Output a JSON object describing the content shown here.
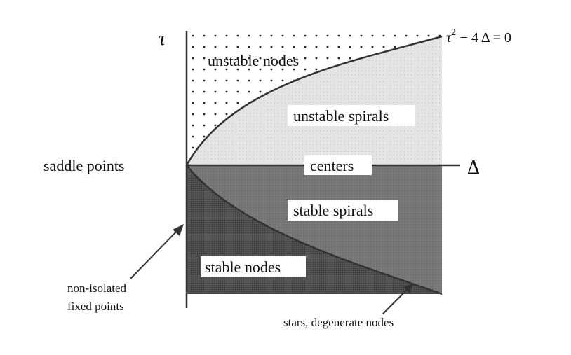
{
  "diagram": {
    "axes": {
      "vertical_label": "τ",
      "horizontal_label": "Δ"
    },
    "curve_equation": {
      "base": "τ",
      "exponent": "2",
      "rest": "− 4 Δ = 0"
    },
    "regions": {
      "unstable_nodes": "unstable nodes",
      "unstable_spirals": "unstable spirals",
      "centers": "centers",
      "stable_spirals": "stable spirals",
      "stable_nodes": "stable nodes",
      "saddle_points": "saddle points"
    },
    "annotations": {
      "non_isolated_line1": "non-isolated",
      "non_isolated_line2": "fixed points",
      "stars_degenerate": "stars, degenerate nodes"
    }
  }
}
